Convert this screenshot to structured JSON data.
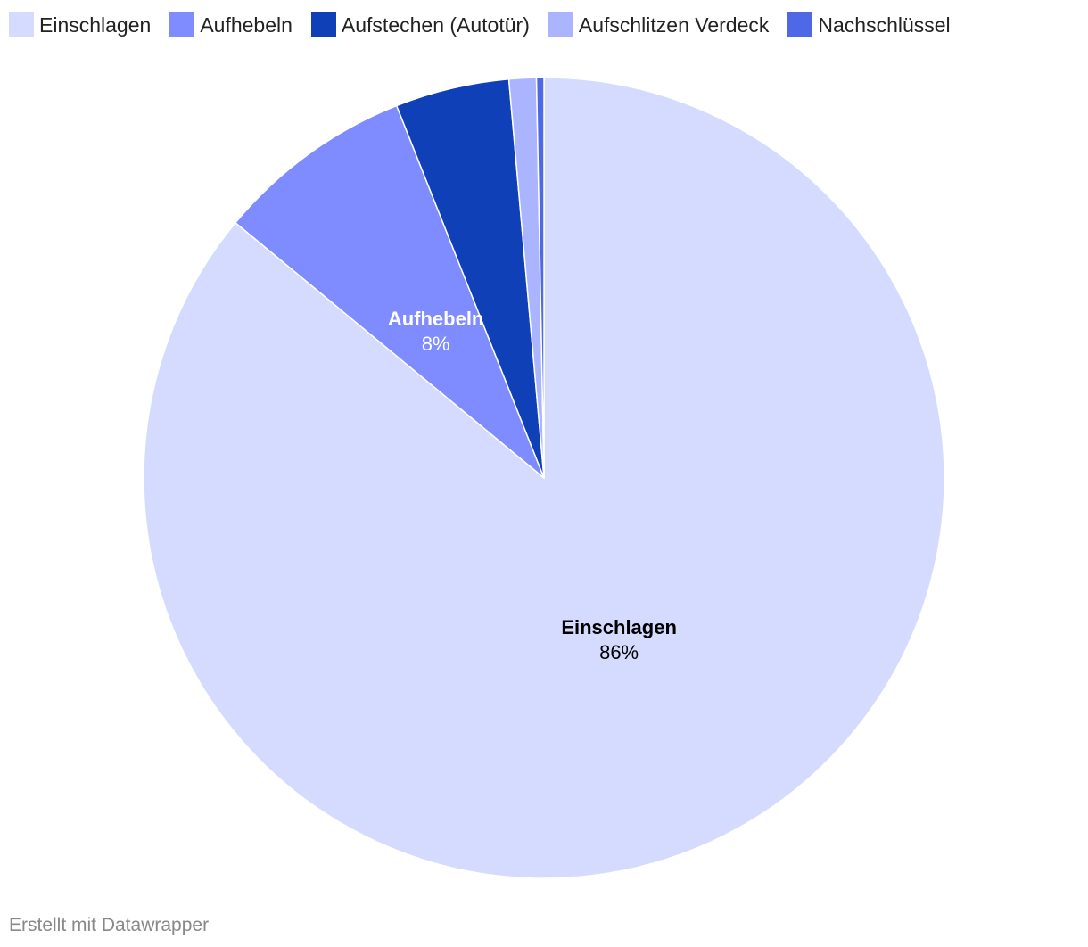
{
  "chart_data": {
    "type": "pie",
    "slices": [
      {
        "name": "Einschlagen",
        "value": 86,
        "label": "86%",
        "color": "#d5dbfe",
        "label_color": "#000000",
        "show_label": true
      },
      {
        "name": "Aufhebeln",
        "value": 8,
        "label": "8%",
        "color": "#7f8cff",
        "label_color": "#ffffff",
        "show_label": true
      },
      {
        "name": "Aufstechen (Autotür)",
        "value": 4.6,
        "label": "",
        "color": "#1040b8",
        "label_color": "#ffffff",
        "show_label": false
      },
      {
        "name": "Aufschlitzen Verdeck",
        "value": 1.1,
        "label": "",
        "color": "#aab4ff",
        "label_color": "#000000",
        "show_label": false
      },
      {
        "name": "Nachschlüssel",
        "value": 0.3,
        "label": "",
        "color": "#4e68e6",
        "label_color": "#ffffff",
        "show_label": false
      }
    ],
    "legend_position": "top-left"
  },
  "footer": {
    "credit": "Erstellt mit Datawrapper"
  }
}
